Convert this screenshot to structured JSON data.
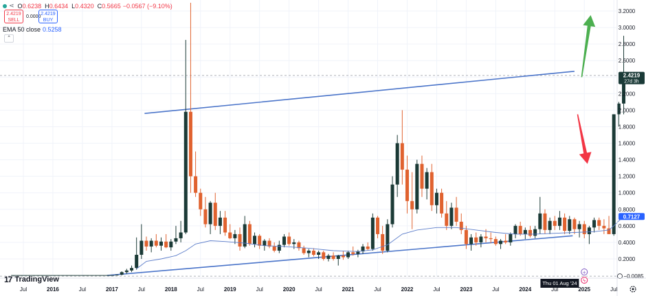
{
  "legend": {
    "ohlc": [
      {
        "key": "O",
        "value": "0.6238"
      },
      {
        "key": "H",
        "value": "0.6434"
      },
      {
        "key": "L",
        "value": "0.4320"
      },
      {
        "key": "C",
        "value": "0.5665"
      }
    ],
    "change": "−0.0567 (−9.10%)",
    "sell_price": "2.4219",
    "sell_label": "SELL",
    "spread": "0.0000",
    "buy_price": "2.4219",
    "buy_label": "BUY",
    "ema_label": "EMA 50 close",
    "ema_value": "0.5258"
  },
  "branding": {
    "text": "TradingView"
  },
  "colors": {
    "up": "#1b3a36",
    "down": "#e0622f",
    "ema": "#5b7cc9",
    "trend": "#4a74c9",
    "arrow_up": "#4caf50",
    "arrow_down": "#f23645",
    "price_tag": "#1a3a37",
    "ema_tag": "#2962ff"
  },
  "chart_data": {
    "type": "candlestick",
    "y_ticks": [
      "3.2000",
      "3.0000",
      "2.8000",
      "2.6000",
      "2.4000",
      "2.2000",
      "2.0000",
      "1.8000",
      "1.6000",
      "1.4000",
      "1.2000",
      "1.0000",
      "0.8000",
      "0.6000",
      "0.4000",
      "0.2000"
    ],
    "x_ticks": [
      "Jul",
      "2016",
      "Jul",
      "2017",
      "Jul",
      "2018",
      "Jul",
      "2019",
      "Jul",
      "2020",
      "Jul",
      "2021",
      "Jul",
      "2022",
      "Jul",
      "2023",
      "Jul",
      "2024",
      "Jul",
      "2025",
      "Jul"
    ],
    "ylim": [
      -0.0085,
      3.25
    ],
    "price_label": "2.4219",
    "price_countdown": "27d 3h",
    "ema_label_value": "0.7127",
    "min_label_value": "−0.0085",
    "crosshair_date": "Thu 01 Aug '24",
    "start": "2015-05",
    "candles": [
      [
        0.0,
        0.0,
        0.0,
        0.0
      ],
      [
        0.0,
        0.0,
        0.0,
        0.0
      ],
      [
        0.0,
        0.0,
        0.0,
        0.0
      ],
      [
        0.0,
        0.0,
        0.0,
        0.0
      ],
      [
        0.0,
        0.0,
        0.0,
        0.0
      ],
      [
        0.0,
        0.0,
        0.0,
        0.0
      ],
      [
        0.0,
        0.0,
        0.0,
        0.0
      ],
      [
        0.0,
        0.0,
        0.0,
        0.0
      ],
      [
        0.0,
        0.0,
        0.0,
        0.0
      ],
      [
        0.0,
        0.0,
        0.0,
        0.0
      ],
      [
        0.0,
        0.0,
        0.0,
        0.0
      ],
      [
        0.0,
        0.0,
        0.0,
        0.0
      ],
      [
        0.0,
        0.0,
        0.0,
        0.0
      ],
      [
        0.0,
        0.0,
        0.0,
        0.0
      ],
      [
        0.0,
        0.0,
        0.0,
        0.0
      ],
      [
        0.0,
        0.0,
        0.0,
        0.0
      ],
      [
        0.0,
        0.0,
        0.0,
        0.0
      ],
      [
        0.0,
        0.0,
        0.0,
        0.0
      ],
      [
        0.0,
        0.0,
        0.0,
        0.0
      ],
      [
        0.0,
        0.0,
        0.0,
        0.0
      ],
      [
        0.0,
        0.0,
        0.0,
        0.0
      ],
      [
        0.0,
        0.01,
        0.0,
        0.01
      ],
      [
        0.01,
        0.05,
        0.0,
        0.04
      ],
      [
        0.04,
        0.08,
        0.02,
        0.06
      ],
      [
        0.06,
        0.12,
        0.04,
        0.09
      ],
      [
        0.09,
        0.46,
        0.07,
        0.25
      ],
      [
        0.25,
        0.62,
        0.2,
        0.42
      ],
      [
        0.42,
        0.47,
        0.3,
        0.35
      ],
      [
        0.35,
        0.45,
        0.28,
        0.42
      ],
      [
        0.42,
        0.5,
        0.34,
        0.36
      ],
      [
        0.36,
        0.46,
        0.3,
        0.41
      ],
      [
        0.41,
        0.5,
        0.33,
        0.34
      ],
      [
        0.34,
        0.44,
        0.3,
        0.41
      ],
      [
        0.41,
        0.6,
        0.38,
        0.45
      ],
      [
        0.45,
        0.66,
        0.4,
        0.52
      ],
      [
        0.52,
        2.85,
        0.5,
        1.98
      ],
      [
        1.98,
        3.6,
        1.0,
        1.2
      ],
      [
        1.2,
        1.5,
        0.95,
        1.0
      ],
      [
        1.0,
        1.05,
        0.72,
        0.8
      ],
      [
        0.8,
        0.95,
        0.58,
        0.62
      ],
      [
        0.62,
        0.9,
        0.5,
        0.88
      ],
      [
        0.88,
        1.0,
        0.55,
        0.6
      ],
      [
        0.6,
        0.78,
        0.5,
        0.7
      ],
      [
        0.7,
        0.78,
        0.48,
        0.52
      ],
      [
        0.52,
        0.62,
        0.44,
        0.45
      ],
      [
        0.45,
        0.55,
        0.38,
        0.5
      ],
      [
        0.5,
        0.58,
        0.3,
        0.35
      ],
      [
        0.35,
        0.72,
        0.33,
        0.62
      ],
      [
        0.62,
        0.66,
        0.36,
        0.38
      ],
      [
        0.38,
        0.52,
        0.34,
        0.48
      ],
      [
        0.48,
        0.5,
        0.32,
        0.36
      ],
      [
        0.36,
        0.44,
        0.3,
        0.42
      ],
      [
        0.42,
        0.45,
        0.33,
        0.35
      ],
      [
        0.35,
        0.4,
        0.28,
        0.3
      ],
      [
        0.3,
        0.42,
        0.27,
        0.37
      ],
      [
        0.37,
        0.5,
        0.34,
        0.47
      ],
      [
        0.47,
        0.52,
        0.36,
        0.38
      ],
      [
        0.38,
        0.44,
        0.32,
        0.4
      ],
      [
        0.4,
        0.42,
        0.3,
        0.33
      ],
      [
        0.33,
        0.36,
        0.25,
        0.27
      ],
      [
        0.27,
        0.32,
        0.22,
        0.3
      ],
      [
        0.3,
        0.33,
        0.23,
        0.25
      ],
      [
        0.25,
        0.3,
        0.2,
        0.28
      ],
      [
        0.28,
        0.3,
        0.18,
        0.2
      ],
      [
        0.2,
        0.26,
        0.17,
        0.24
      ],
      [
        0.24,
        0.28,
        0.18,
        0.2
      ],
      [
        0.2,
        0.25,
        0.12,
        0.24
      ],
      [
        0.24,
        0.3,
        0.19,
        0.22
      ],
      [
        0.22,
        0.3,
        0.2,
        0.28
      ],
      [
        0.28,
        0.35,
        0.24,
        0.26
      ],
      [
        0.26,
        0.31,
        0.22,
        0.29
      ],
      [
        0.29,
        0.38,
        0.26,
        0.35
      ],
      [
        0.35,
        0.4,
        0.3,
        0.32
      ],
      [
        0.32,
        0.75,
        0.3,
        0.7
      ],
      [
        0.7,
        0.72,
        0.45,
        0.5
      ],
      [
        0.5,
        0.6,
        0.26,
        0.3
      ],
      [
        0.3,
        0.68,
        0.28,
        0.62
      ],
      [
        0.62,
        1.2,
        0.58,
        1.1
      ],
      [
        1.1,
        1.7,
        0.95,
        1.6
      ],
      [
        1.6,
        2.0,
        1.1,
        1.28
      ],
      [
        1.28,
        1.45,
        0.75,
        0.9
      ],
      [
        0.9,
        1.25,
        0.56,
        0.8
      ],
      [
        0.8,
        1.4,
        0.75,
        1.35
      ],
      [
        1.35,
        1.45,
        0.95,
        1.05
      ],
      [
        1.05,
        1.3,
        0.92,
        1.25
      ],
      [
        1.25,
        1.35,
        0.78,
        0.85
      ],
      [
        0.85,
        1.05,
        0.75,
        1.0
      ],
      [
        1.0,
        1.05,
        0.7,
        0.75
      ],
      [
        0.75,
        0.9,
        0.55,
        0.6
      ],
      [
        0.6,
        0.88,
        0.56,
        0.82
      ],
      [
        0.82,
        0.95,
        0.6,
        0.65
      ],
      [
        0.65,
        0.75,
        0.5,
        0.55
      ],
      [
        0.55,
        0.6,
        0.32,
        0.38
      ],
      [
        0.38,
        0.5,
        0.3,
        0.46
      ],
      [
        0.46,
        0.52,
        0.36,
        0.4
      ],
      [
        0.4,
        0.5,
        0.34,
        0.47
      ],
      [
        0.47,
        0.56,
        0.4,
        0.45
      ],
      [
        0.45,
        0.52,
        0.39,
        0.44
      ],
      [
        0.44,
        0.47,
        0.36,
        0.38
      ],
      [
        0.38,
        0.44,
        0.32,
        0.42
      ],
      [
        0.42,
        0.5,
        0.38,
        0.4
      ],
      [
        0.4,
        0.52,
        0.36,
        0.5
      ],
      [
        0.5,
        0.62,
        0.45,
        0.6
      ],
      [
        0.6,
        0.65,
        0.48,
        0.5
      ],
      [
        0.5,
        0.58,
        0.44,
        0.55
      ],
      [
        0.55,
        0.6,
        0.46,
        0.48
      ],
      [
        0.48,
        0.6,
        0.45,
        0.56
      ],
      [
        0.56,
        0.95,
        0.5,
        0.75
      ],
      [
        0.75,
        0.8,
        0.5,
        0.55
      ],
      [
        0.55,
        0.7,
        0.5,
        0.66
      ],
      [
        0.66,
        0.72,
        0.55,
        0.6
      ],
      [
        0.6,
        0.78,
        0.55,
        0.7
      ],
      [
        0.7,
        0.75,
        0.5,
        0.54
      ],
      [
        0.54,
        0.72,
        0.5,
        0.68
      ],
      [
        0.68,
        0.7,
        0.5,
        0.56
      ],
      [
        0.56,
        0.66,
        0.46,
        0.62
      ],
      [
        0.62,
        0.66,
        0.45,
        0.5
      ],
      [
        0.5,
        0.6,
        0.38,
        0.58
      ],
      [
        0.58,
        0.7,
        0.52,
        0.67
      ],
      [
        0.67,
        0.7,
        0.55,
        0.6
      ],
      [
        0.6,
        0.68,
        0.5,
        0.57
      ],
      [
        0.57,
        0.72,
        0.52,
        0.5
      ],
      [
        0.5,
        1.95,
        0.48,
        1.95
      ],
      [
        1.95,
        2.1,
        1.8,
        2.08
      ],
      [
        2.08,
        2.9,
        1.95,
        2.42
      ]
    ],
    "ema": [
      [
        25,
        0.08
      ],
      [
        27,
        0.17
      ],
      [
        30,
        0.2
      ],
      [
        33,
        0.24
      ],
      [
        35,
        0.3
      ],
      [
        37,
        0.38
      ],
      [
        40,
        0.42
      ],
      [
        43,
        0.41
      ],
      [
        47,
        0.39
      ],
      [
        51,
        0.36
      ],
      [
        55,
        0.35
      ],
      [
        60,
        0.33
      ],
      [
        65,
        0.3
      ],
      [
        70,
        0.29
      ],
      [
        73,
        0.31
      ],
      [
        76,
        0.37
      ],
      [
        79,
        0.5
      ],
      [
        82,
        0.55
      ],
      [
        86,
        0.58
      ],
      [
        90,
        0.58
      ],
      [
        94,
        0.55
      ],
      [
        98,
        0.52
      ],
      [
        102,
        0.5
      ],
      [
        106,
        0.5
      ],
      [
        110,
        0.51
      ],
      [
        114,
        0.52
      ],
      [
        118,
        0.53
      ],
      [
        121,
        0.55
      ],
      [
        122,
        0.6
      ],
      [
        123,
        0.66
      ],
      [
        124,
        0.71
      ]
    ],
    "trendlines": [
      {
        "from": [
          "2017-07-20",
          1.96
        ],
        "to": [
          "2024-11-01",
          2.47
        ]
      },
      {
        "from": [
          "2016-12-01",
          0.0
        ],
        "to": [
          "2024-10-20",
          0.48
        ]
      }
    ],
    "annotations": [
      {
        "type": "arrow-up",
        "from": [
          "2024-12-15",
          2.4
        ],
        "to": [
          "2025-02-10",
          3.15
        ]
      },
      {
        "type": "arrow-down",
        "from": [
          "2024-11-20",
          1.95
        ],
        "to": [
          "2025-01-20",
          1.35
        ]
      }
    ]
  }
}
